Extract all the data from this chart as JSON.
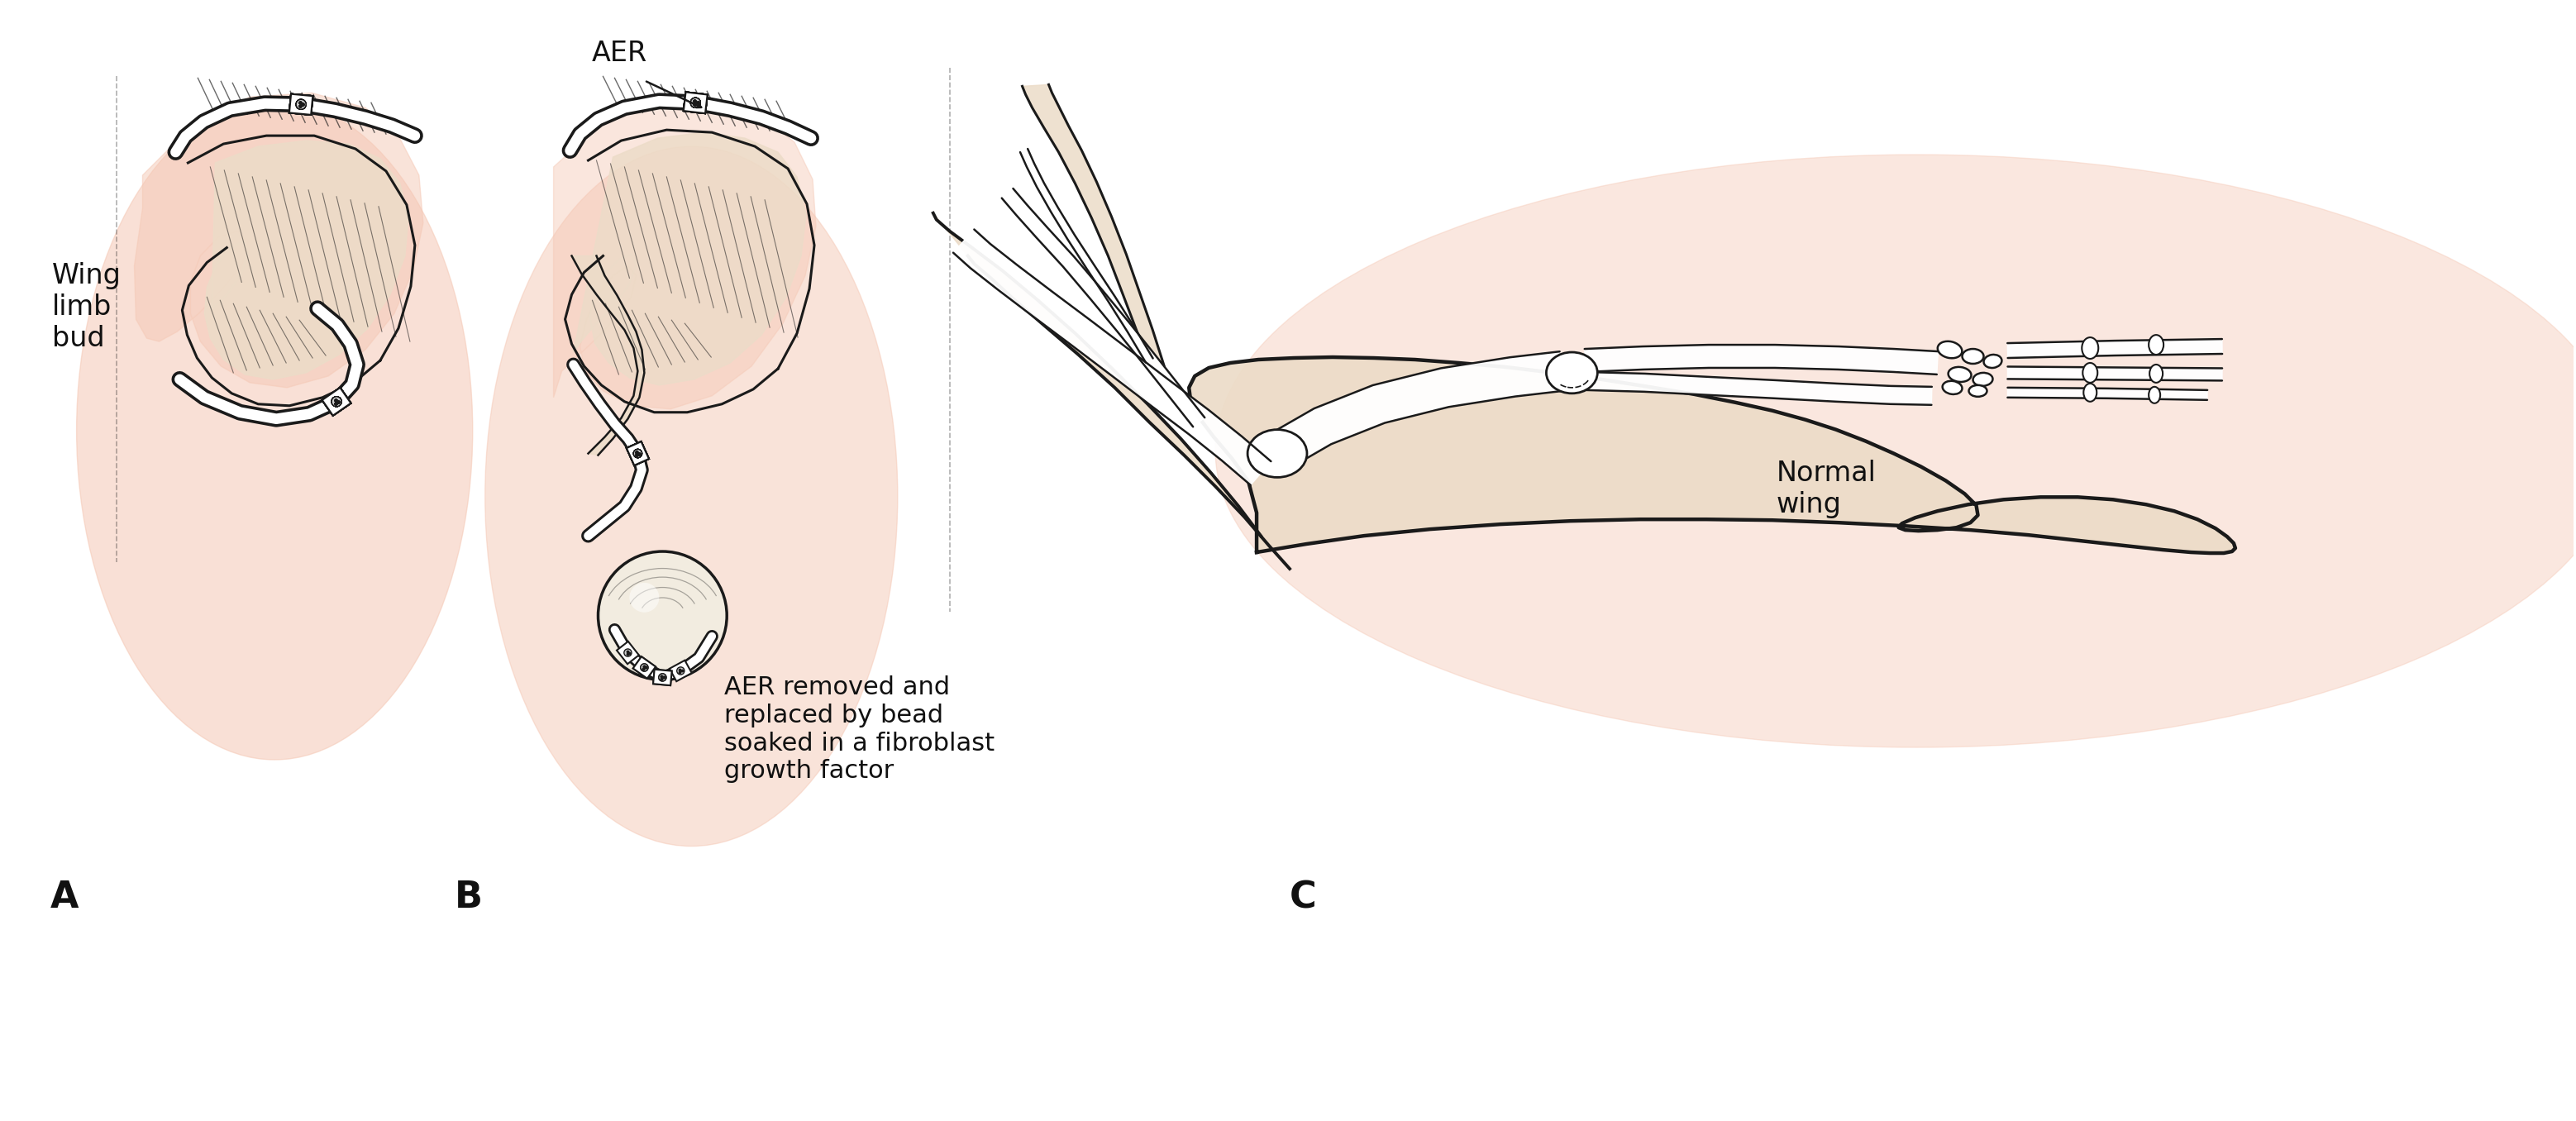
{
  "bg_color": "#ffffff",
  "salmon_color": "#f5c8b5",
  "skin_color": "#f0d0c0",
  "skin_fill": "#ecdcc8",
  "line_color": "#1a1a1a",
  "text_color": "#111111",
  "label_A": "A",
  "label_B": "B",
  "label_C": "C",
  "text_wing": "Wing\nlimb\nbud",
  "text_AER": "AER",
  "text_normal": "Normal\nwing",
  "text_bead": "AER removed and\nreplaced by bead\nsoaked in a fibroblast\ngrowth factor",
  "label_fontsize": 32,
  "text_fontsize": 24,
  "small_fontsize": 22
}
